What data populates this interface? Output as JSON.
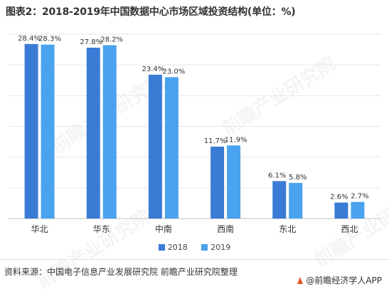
{
  "title": "图表2：2018-2019年中国数据中心市场区域投资结构(单位：%)",
  "watermark": "前瞻产业研究院",
  "source": "资料来源：中国电子信息产业发展研究院 前瞻产业研究院整理",
  "brand": "@前瞻经济学人APP",
  "colors": {
    "s2018": "#3a7bd5",
    "s2019": "#4aa3ee",
    "grid": "#e6e6e6",
    "axis": "#bfbfbf"
  },
  "chart_data": {
    "type": "bar",
    "categories": [
      "华北",
      "华东",
      "中南",
      "西南",
      "东北",
      "西北"
    ],
    "series": [
      {
        "name": "2018",
        "values": [
          28.4,
          27.8,
          23.4,
          11.7,
          6.1,
          2.6
        ],
        "labels": [
          "28.4%",
          "27.8%",
          "23.4%",
          "11.7%",
          "6.1%",
          "2.6%"
        ]
      },
      {
        "name": "2019",
        "values": [
          28.3,
          28.2,
          23.0,
          11.9,
          5.8,
          2.7
        ],
        "labels": [
          "28.3%",
          "28.2%",
          "23.0%",
          "11.9%",
          "5.8%",
          "2.7%"
        ]
      }
    ],
    "ylim": [
      0,
      30
    ],
    "grid": true,
    "legend": "bottom",
    "title": "图表2：2018-2019年中国数据中心市场区域投资结构(单位：%)",
    "xlabel": "",
    "ylabel": ""
  }
}
